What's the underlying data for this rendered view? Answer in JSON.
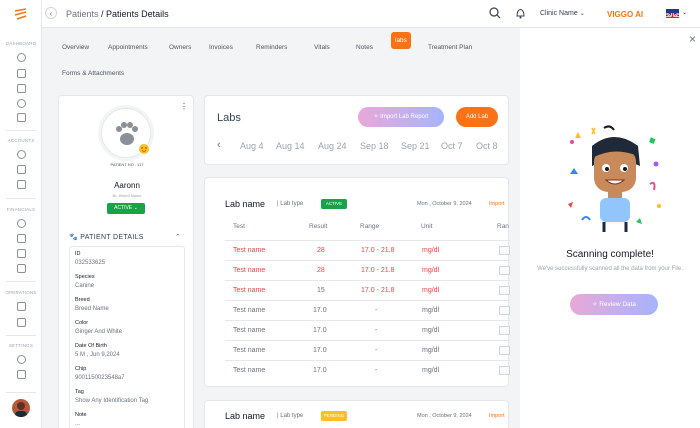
{
  "sidebar": {
    "sections": [
      "DASHBOARD",
      "ACCOUNTS",
      "FINANCIALS",
      "OPERATIONS",
      "SETTINGS"
    ]
  },
  "header": {
    "back": "‹",
    "breadcrumb_parent": "Patients",
    "breadcrumb_current": "/ Patients Details",
    "clinic_name": "Clinic Name",
    "ai_label": "VIGGO AI"
  },
  "tabs": [
    "Overview",
    "Appointments",
    "Owners",
    "Invoices",
    "Reminders",
    "Vitals",
    "Notes",
    "labs",
    "Treatment Plan",
    "Forms & Attachments"
  ],
  "patient": {
    "number": "PATIENT NO : 117",
    "name": "Aaronn",
    "sub": "Br- Breed Name",
    "status": "ACTIVE",
    "details_title": "PATIENT DETAILS",
    "fields": [
      {
        "label": "ID",
        "value": "032533625"
      },
      {
        "label": "Species",
        "value": "Canine"
      },
      {
        "label": "Breed",
        "value": "Breed Name"
      },
      {
        "label": "Color",
        "value": "Ginger And White"
      },
      {
        "label": "Date Of Birth",
        "value": "5 M , Jun 9,2024"
      },
      {
        "label": "Chip",
        "value": "9001150023548a7"
      },
      {
        "label": "Tag",
        "value": "Show Any Identification Tag"
      },
      {
        "label": "Note",
        "value": "..."
      }
    ]
  },
  "labs": {
    "title": "Labs",
    "import_button": "Import Lab Report",
    "add_button": "Add Lab",
    "dates": [
      "Aug 4",
      "Aug 14",
      "Aug 24",
      "Sep 18",
      "Sep 21",
      "Oct 7",
      "Oct 8"
    ]
  },
  "lab_card": {
    "name": "Lab name",
    "type": "| Lab type",
    "badge": "ACTIVE",
    "date": "Mon , October 9, 2024",
    "import": "Import",
    "headers": [
      "Test",
      "Result",
      "Range",
      "Unit",
      "Ran"
    ],
    "rows": [
      {
        "test": "Test  name",
        "result": "28",
        "range": "17.0 - 21.8",
        "unit": "mg/dl",
        "abnormal": true
      },
      {
        "test": "Test  name",
        "result": "28",
        "range": "17.0 - 21.8",
        "unit": "mg/dl",
        "abnormal": true
      },
      {
        "test": "Test  name",
        "result": "15",
        "range": "17.0 - 21.8",
        "unit": "mg/dl",
        "abnormal": true
      },
      {
        "test": "Test  name",
        "result": "17.0",
        "range": "-",
        "unit": "mg/dl",
        "abnormal": false
      },
      {
        "test": "Test  name",
        "result": "17.0",
        "range": "-",
        "unit": "mg/dl",
        "abnormal": false
      },
      {
        "test": "Test  name",
        "result": "17.0",
        "range": "-",
        "unit": "mg/dl",
        "abnormal": false
      },
      {
        "test": "Test  name",
        "result": "17.0",
        "range": "-",
        "unit": "mg/dl",
        "abnormal": false
      }
    ]
  },
  "lab_card2": {
    "name": "Lab name",
    "type": "| Lab type",
    "badge": "PENDING",
    "date": "Mon , October 9, 2024",
    "import": "Import"
  },
  "scan_panel": {
    "title": "Scanning complete!",
    "message": "We've successfully scanned all the data from your File.",
    "button": "Review Data"
  },
  "colors": {
    "accent": "#f97316",
    "active": "#16a34a",
    "pending": "#fbbf24",
    "abnormal": "#ef4444"
  }
}
